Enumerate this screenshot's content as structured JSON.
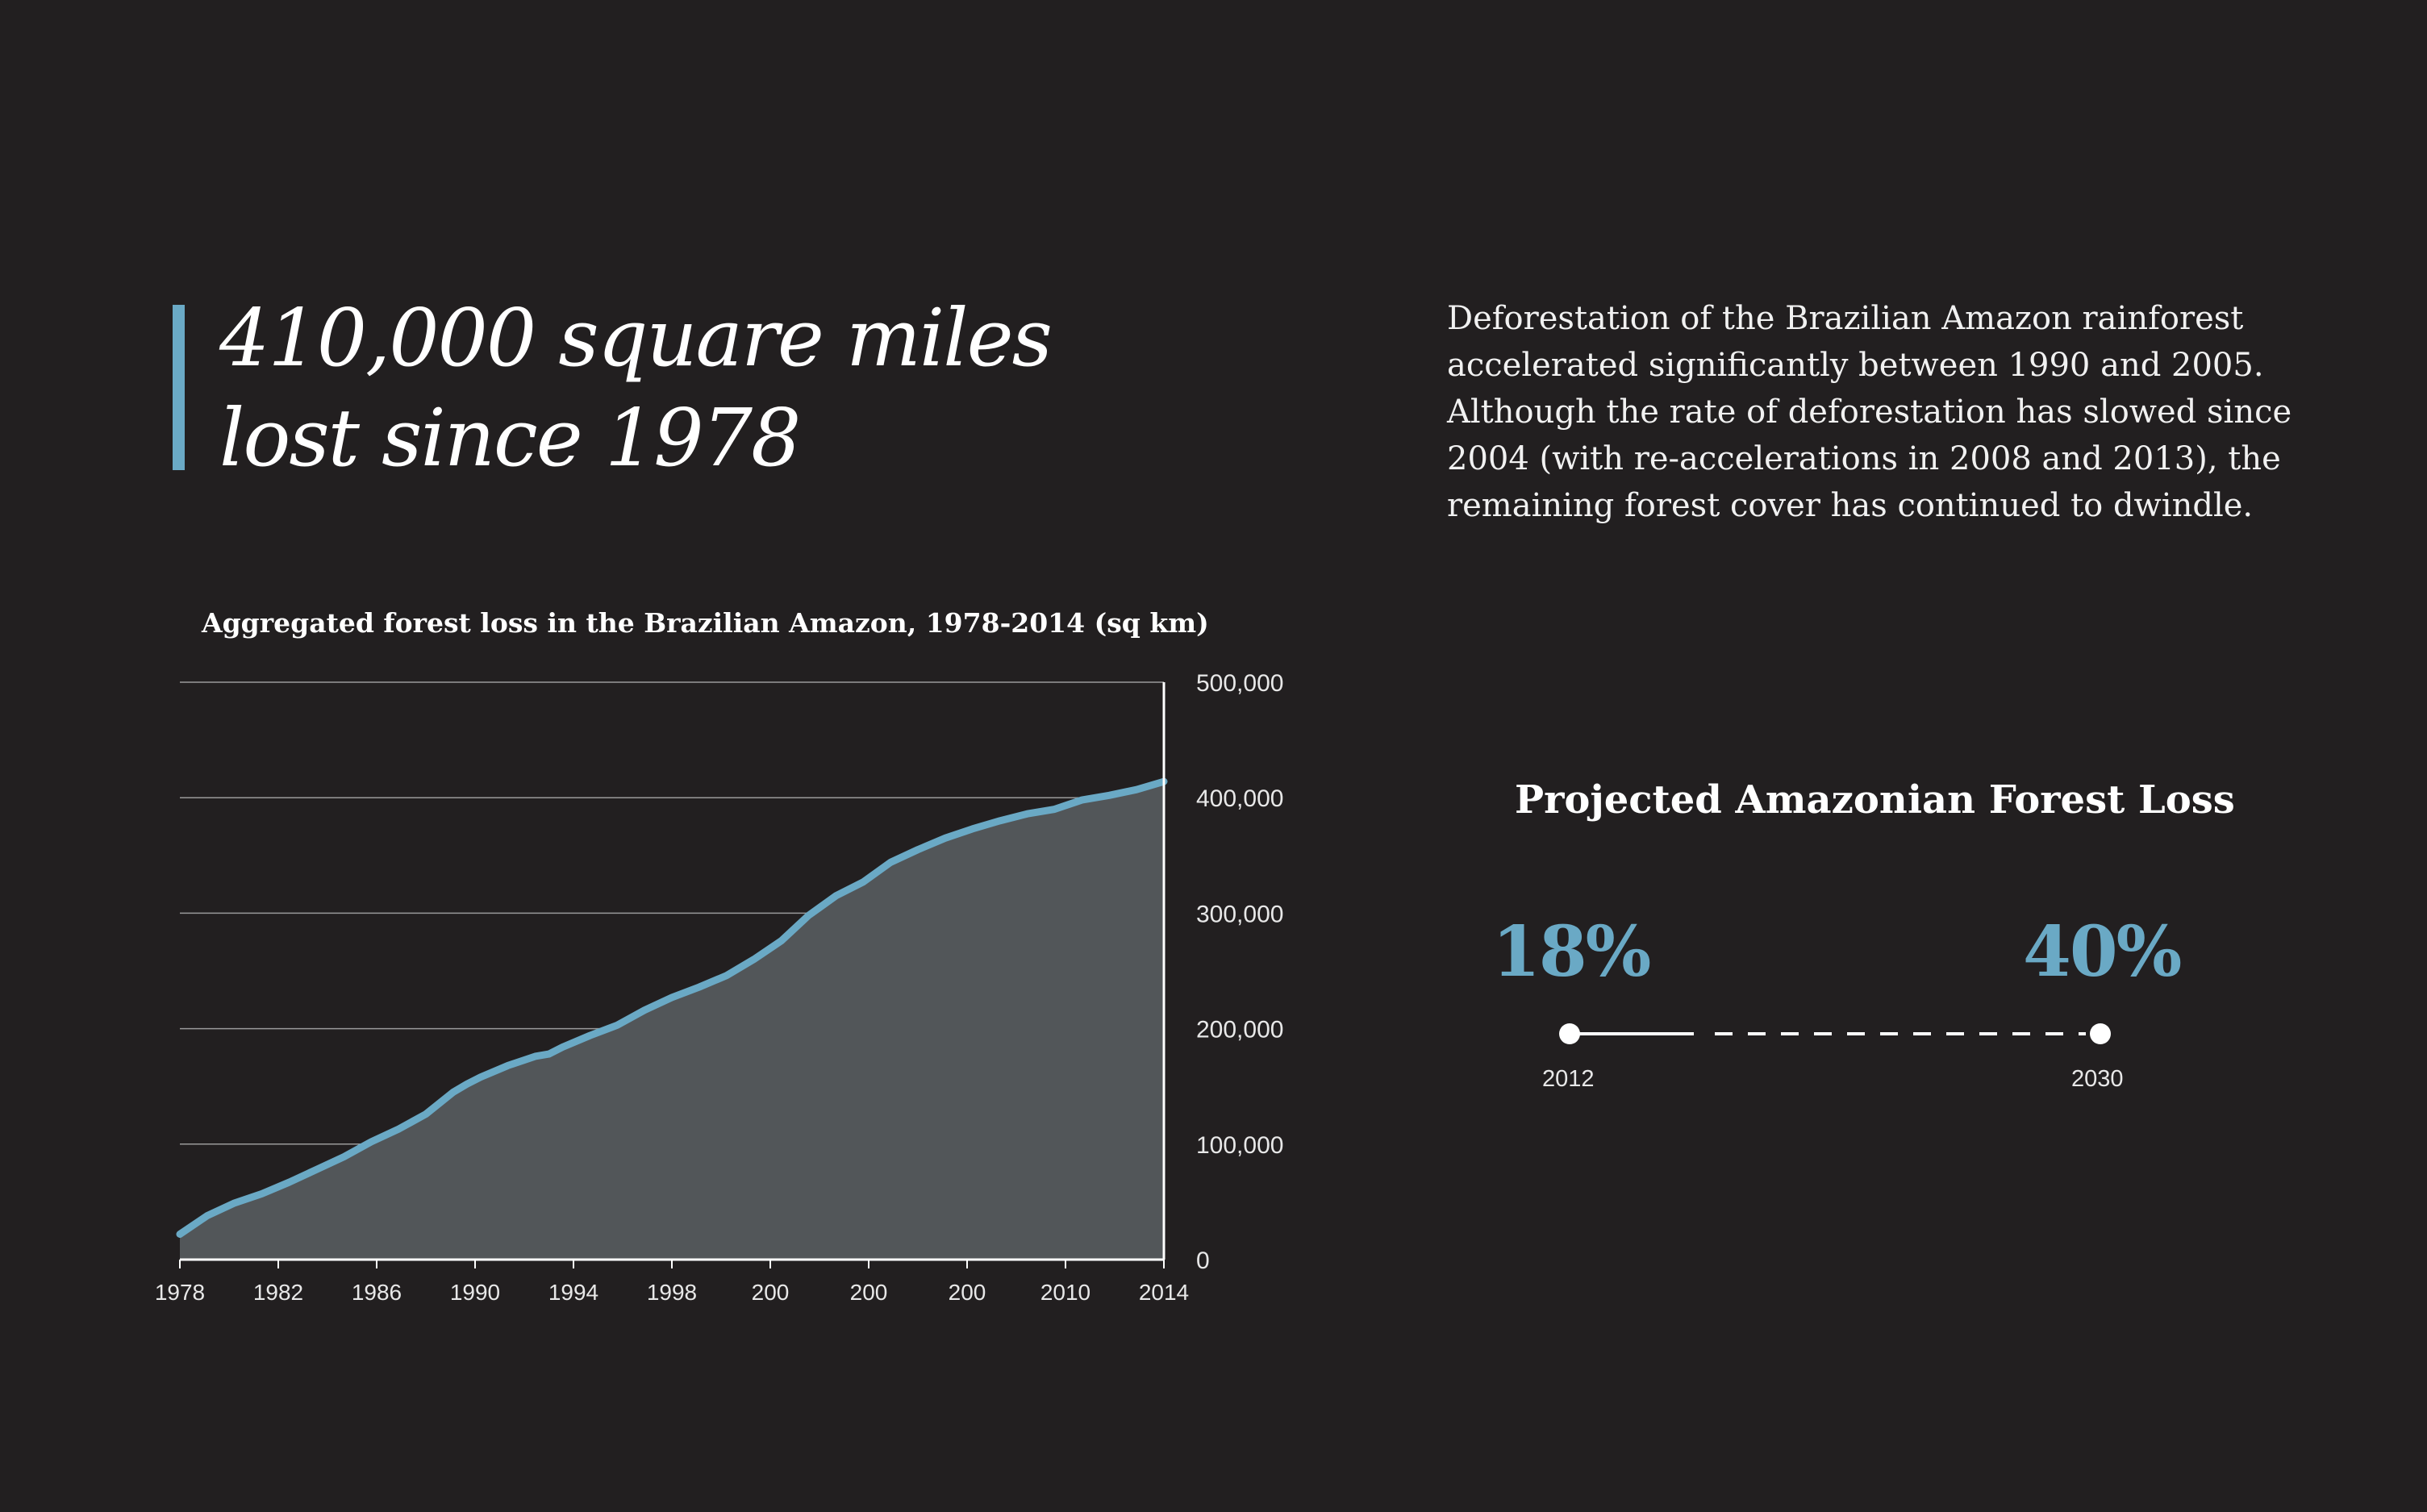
{
  "headline": {
    "lines": [
      "410,000 square miles",
      "lost since 1978"
    ]
  },
  "description": {
    "lines": [
      "Deforestation of the Brazilian Amazon rainforest",
      "accelerated significantly between 1990 and 2005.",
      "Although the rate of deforestation has slowed since",
      "2004 (with re-accelerations in 2008 and 2013), the",
      "remaining forest cover has continued to dwindle."
    ]
  },
  "projection": {
    "title": "Projected Amazonian Forest Loss",
    "start": {
      "percent": "18%",
      "year": "2012"
    },
    "end": {
      "percent": "40%",
      "year": "2030"
    }
  },
  "colors": {
    "background": "#221f20",
    "accent": "#6aa9c5",
    "area_fill": "#525659",
    "grid": "#9a9a9a"
  },
  "chart_data": {
    "type": "area",
    "title": "Aggregated forest loss in the Brazilian Amazon, 1978-2014 (sq km)",
    "xlabel": "",
    "ylabel": "",
    "x_tick_labels": [
      "1978",
      "1982",
      "1986",
      "1990",
      "1994",
      "1998",
      "200",
      "200",
      "200",
      "2010",
      "2014"
    ],
    "y_tick_labels": [
      "0",
      "100,000",
      "200,000",
      "300,000",
      "400,000",
      "500,000"
    ],
    "ylim": [
      0,
      500000
    ],
    "xlim": [
      1978,
      2014
    ],
    "grid": true,
    "y_axis_position": "right",
    "series": [
      {
        "x": [
          1978,
          1979,
          1980,
          1981,
          1982,
          1983,
          1984,
          1985,
          1986,
          1987,
          1988,
          1988.5,
          1989,
          1990,
          1991,
          1991.5,
          1992,
          1993,
          1994,
          1995,
          1996,
          1997,
          1998,
          1999,
          2000,
          2001,
          2002,
          2003,
          2004,
          2005,
          2006,
          2007,
          2008,
          2009,
          2010,
          2011,
          2012,
          2013,
          2014
        ],
        "values": [
          22000,
          38000,
          49000,
          57000,
          67000,
          78000,
          89000,
          102000,
          113000,
          126000,
          145000,
          152000,
          158000,
          168000,
          176000,
          178000,
          184000,
          194000,
          203000,
          216000,
          227000,
          236000,
          246000,
          260000,
          276000,
          298000,
          315000,
          327000,
          344000,
          355000,
          365000,
          373000,
          380000,
          386000,
          390000,
          398000,
          402000,
          407000,
          414000
        ]
      }
    ]
  }
}
